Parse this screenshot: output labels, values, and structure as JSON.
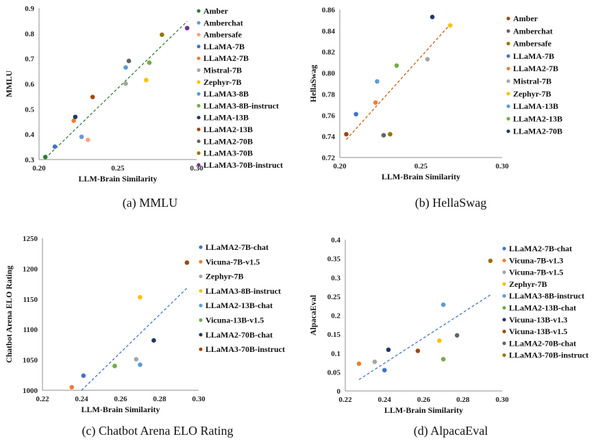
{
  "chart_data": [
    {
      "type": "scatter",
      "caption": "(a) MMLU",
      "xlabel": "LLM-Brain Similarity",
      "ylabel": "MMLU",
      "xlim": [
        0.2,
        0.3
      ],
      "ylim": [
        0.3,
        0.9
      ],
      "xticks": [
        "0.20",
        "0.25",
        "0.30"
      ],
      "yticks": [
        "0.3",
        "0.4",
        "0.5",
        "0.6",
        "0.7",
        "0.8",
        "0.9"
      ],
      "trendline": {
        "x1": 0.204,
        "y1": 0.305,
        "x2": 0.294,
        "y2": 0.848,
        "color": "#2f7d32"
      },
      "grid": false,
      "legend_position": "right",
      "series": [
        {
          "name": "Amber",
          "color": "#2e7d32",
          "x": 0.204,
          "y": 0.31
        },
        {
          "name": "Amberchat",
          "color": "#6a97d6",
          "x": 0.227,
          "y": 0.39
        },
        {
          "name": "Ambersafe",
          "color": "#f4a582",
          "x": 0.231,
          "y": 0.378
        },
        {
          "name": "LLaMA-7B",
          "color": "#4472c4",
          "x": 0.21,
          "y": 0.351
        },
        {
          "name": "LLaMA2-7B",
          "color": "#ed7d31",
          "x": 0.222,
          "y": 0.454
        },
        {
          "name": "Mistral-7B",
          "color": "#a5a5a5",
          "x": 0.255,
          "y": 0.601
        },
        {
          "name": "Zephyr-7B",
          "color": "#ffc000",
          "x": 0.268,
          "y": 0.615
        },
        {
          "name": "LLaMA3-8B",
          "color": "#5b9bd5",
          "x": 0.255,
          "y": 0.665
        },
        {
          "name": "LLaMA3-8B-instruct",
          "color": "#70ad47",
          "x": 0.27,
          "y": 0.684
        },
        {
          "name": "LLaMA-13B",
          "color": "#1f3864",
          "x": 0.223,
          "y": 0.469
        },
        {
          "name": "LLaMA2-13B",
          "color": "#9e480e",
          "x": 0.234,
          "y": 0.548
        },
        {
          "name": "LLaMA2-70B",
          "color": "#636363",
          "x": 0.257,
          "y": 0.691
        },
        {
          "name": "LLaMA3-70B",
          "color": "#997300",
          "x": 0.278,
          "y": 0.795
        },
        {
          "name": "LLaMA3-70B-instruct",
          "color": "#7030a0",
          "x": 0.294,
          "y": 0.821
        }
      ]
    },
    {
      "type": "scatter",
      "caption": "(b) HellaSwag",
      "xlabel": "LLM-Brain Similarity",
      "ylabel": "HellaSwag",
      "xlim": [
        0.2,
        0.3
      ],
      "ylim": [
        0.72,
        0.86
      ],
      "xticks": [
        "0.20",
        "0.25",
        "0.30"
      ],
      "yticks": [
        "0.72",
        "0.74",
        "0.76",
        "0.78",
        "0.80",
        "0.82",
        "0.84",
        "0.86"
      ],
      "trendline": {
        "x1": 0.204,
        "y1": 0.737,
        "x2": 0.268,
        "y2": 0.846,
        "color": "#c55a11"
      },
      "grid": false,
      "legend_position": "right",
      "series": [
        {
          "name": "Amber",
          "color": "#9e480e",
          "x": 0.204,
          "y": 0.742
        },
        {
          "name": "Amberchat",
          "color": "#636363",
          "x": 0.227,
          "y": 0.741
        },
        {
          "name": "Ambersafe",
          "color": "#997300",
          "x": 0.231,
          "y": 0.742
        },
        {
          "name": "LLaMA-7B",
          "color": "#4472c4",
          "x": 0.21,
          "y": 0.761
        },
        {
          "name": "LLaMA2-7B",
          "color": "#ed7d31",
          "x": 0.222,
          "y": 0.772
        },
        {
          "name": "Mistral-7B",
          "color": "#a5a5a5",
          "x": 0.254,
          "y": 0.813
        },
        {
          "name": "Zephyr-7B",
          "color": "#ffc000",
          "x": 0.268,
          "y": 0.845
        },
        {
          "name": "LLaMA-13B",
          "color": "#5b9bd5",
          "x": 0.223,
          "y": 0.792
        },
        {
          "name": "LLaMA2-13B",
          "color": "#70ad47",
          "x": 0.235,
          "y": 0.807
        },
        {
          "name": "LLaMA2-70B",
          "color": "#1f3864",
          "x": 0.257,
          "y": 0.853
        }
      ]
    },
    {
      "type": "scatter",
      "caption": "(c) Chatbot Arena ELO Rating",
      "xlabel": "LLM-Brain Similarity",
      "ylabel": "Chatbot Arena ELO Rating",
      "xlim": [
        0.22,
        0.3
      ],
      "ylim": [
        1000,
        1250
      ],
      "xticks": [
        "0.22",
        "0.24",
        "0.26",
        "0.28",
        "0.30"
      ],
      "yticks": [
        "1000",
        "1050",
        "1100",
        "1150",
        "1200",
        "1250"
      ],
      "trendline": {
        "x1": 0.24,
        "y1": 1000,
        "x2": 0.294,
        "y2": 1168,
        "color": "#4472c4"
      },
      "grid": false,
      "legend_position": "right",
      "series": [
        {
          "name": "LLaMA2-7B-chat",
          "color": "#4472c4",
          "x": 0.241,
          "y": 1024
        },
        {
          "name": "Vicuna-7B-v1.5",
          "color": "#ed7d31",
          "x": 0.235,
          "y": 1005
        },
        {
          "name": "Zephyr-7B",
          "color": "#a5a5a5",
          "x": 0.268,
          "y": 1051
        },
        {
          "name": "LLaMA3-8B-instruct",
          "color": "#ffc000",
          "x": 0.27,
          "y": 1153
        },
        {
          "name": "LLaMA2-13B-chat",
          "color": "#5b9bd5",
          "x": 0.27,
          "y": 1042
        },
        {
          "name": "Vicuna-13B-v1.5",
          "color": "#70ad47",
          "x": 0.257,
          "y": 1040
        },
        {
          "name": "LLaMA2-70B-chat",
          "color": "#1f3864",
          "x": 0.277,
          "y": 1082
        },
        {
          "name": "LLaMA3-70B-instruct",
          "color": "#9e480e",
          "x": 0.294,
          "y": 1210
        }
      ]
    },
    {
      "type": "scatter",
      "caption": "(d) AlpacaEval",
      "xlabel": "LLM-Brain Similarity",
      "ylabel": "AlpacaEval",
      "xlim": [
        0.22,
        0.3
      ],
      "ylim": [
        0,
        0.4
      ],
      "xticks": [
        "0.22",
        "0.24",
        "0.26",
        "0.28",
        "0.30"
      ],
      "yticks": [
        "0",
        "0.05",
        "0.1",
        "0.15",
        "0.2",
        "0.25",
        "0.3",
        "0.35",
        "0.4"
      ],
      "trendline": {
        "x1": 0.227,
        "y1": 0.03,
        "x2": 0.294,
        "y2": 0.254,
        "color": "#4472c4"
      },
      "grid": false,
      "legend_position": "right",
      "series": [
        {
          "name": "LLaMA2-7B-chat",
          "color": "#4472c4",
          "x": 0.24,
          "y": 0.055
        },
        {
          "name": "Vicuna-7B-v1.3",
          "color": "#ed7d31",
          "x": 0.227,
          "y": 0.072
        },
        {
          "name": "Vicuna-7B-v1.5",
          "color": "#a5a5a5",
          "x": 0.235,
          "y": 0.077
        },
        {
          "name": "Zephyr-7B",
          "color": "#ffc000",
          "x": 0.268,
          "y": 0.133
        },
        {
          "name": "LLaMA3-8B-instruct",
          "color": "#5b9bd5",
          "x": 0.27,
          "y": 0.228
        },
        {
          "name": "LLaMA2-13B-chat",
          "color": "#70ad47",
          "x": 0.27,
          "y": 0.084
        },
        {
          "name": "Vicuna-13B-v1.3",
          "color": "#1f3864",
          "x": 0.242,
          "y": 0.109
        },
        {
          "name": "Vicuna-13B-v1.5",
          "color": "#9e480e",
          "x": 0.257,
          "y": 0.106
        },
        {
          "name": "LLaMA2-70B-chat",
          "color": "#636363",
          "x": 0.277,
          "y": 0.147
        },
        {
          "name": "LLaMA3-70B-instruct",
          "color": "#997300",
          "x": 0.294,
          "y": 0.344
        }
      ]
    }
  ]
}
